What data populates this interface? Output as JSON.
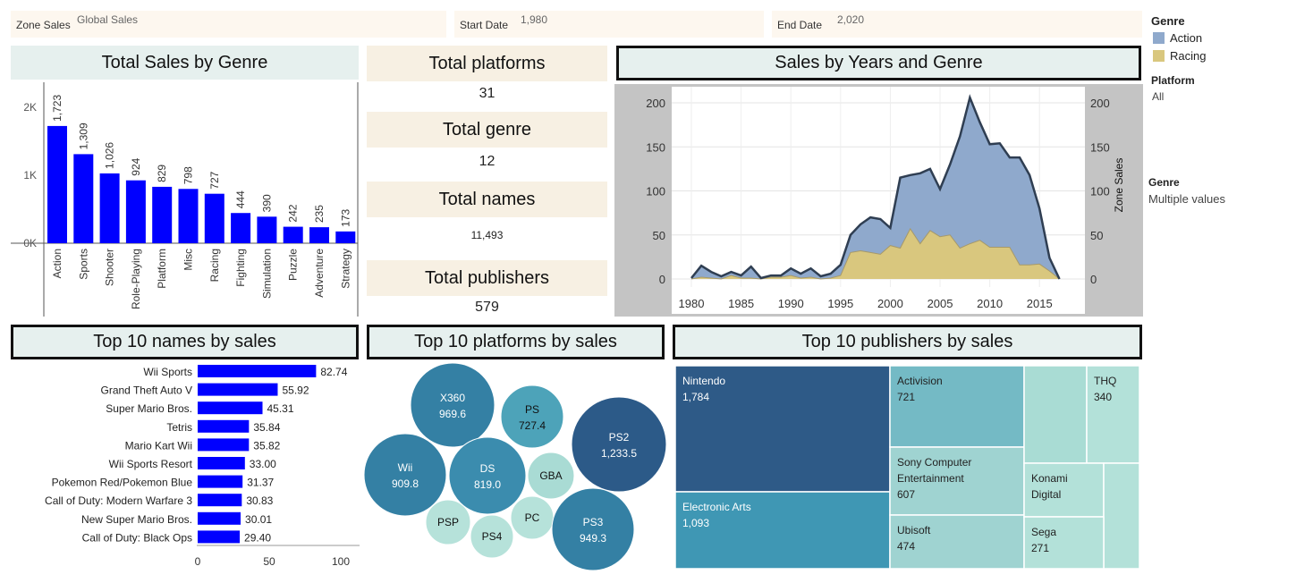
{
  "filters": {
    "zone_label": "Zone Sales",
    "zone_value": "Global Sales",
    "start_label": "Start Date",
    "start_value": "1,980",
    "end_label": "End Date",
    "end_value": "2,020"
  },
  "legend": {
    "genre_title": "Genre",
    "items": [
      {
        "label": "Action",
        "color": "#8fa9cc"
      },
      {
        "label": "Racing",
        "color": "#d9c77e"
      }
    ],
    "platform_title": "Platform",
    "platform_value": "All",
    "genre2_title": "Genre",
    "genre2_value": "Multiple values"
  },
  "kpis": {
    "platforms_title": "Total platforms",
    "platforms_value": "31",
    "genre_title": "Total genre",
    "genre_value": "12",
    "names_title": "Total names",
    "names_value": "11,493",
    "publishers_title": "Total publishers",
    "publishers_value": "579"
  },
  "chart_data": [
    {
      "type": "bar",
      "title": "Total Sales by Genre",
      "categories": [
        "Action",
        "Sports",
        "Shooter",
        "Role-Playing",
        "Platform",
        "Misc",
        "Racing",
        "Fighting",
        "Simulation",
        "Puzzle",
        "Adventure",
        "Strategy"
      ],
      "values": [
        1723,
        1309,
        1026,
        924,
        829,
        798,
        727,
        444,
        390,
        242,
        235,
        173
      ],
      "labels": [
        "1,723",
        "1,309",
        "1,026",
        "924",
        "829",
        "798",
        "727",
        "444",
        "390",
        "242",
        "235",
        "173"
      ],
      "yticks": [
        "0K",
        "1K",
        "2K"
      ],
      "ylim": [
        0,
        2300
      ],
      "color": "#0000ff"
    },
    {
      "type": "area",
      "title": "Sales by Years and Genre",
      "y2label": "Zone Sales",
      "x": [
        1980,
        1981,
        1982,
        1983,
        1984,
        1985,
        1986,
        1987,
        1988,
        1989,
        1990,
        1991,
        1992,
        1993,
        1994,
        1995,
        1996,
        1997,
        1998,
        1999,
        2000,
        2001,
        2002,
        2003,
        2004,
        2005,
        2006,
        2007,
        2008,
        2009,
        2010,
        2011,
        2012,
        2013,
        2014,
        2015,
        2016,
        2017
      ],
      "xticks": [
        1980,
        1985,
        1990,
        1995,
        2000,
        2005,
        2010,
        2015
      ],
      "yticks": [
        0,
        50,
        100,
        150,
        200
      ],
      "ylim": [
        0,
        220
      ],
      "series": [
        {
          "name": "Action",
          "color": "#8fa9cc",
          "values": [
            1,
            15,
            8,
            3,
            8,
            4,
            14,
            1,
            4,
            4,
            12,
            6,
            12,
            3,
            6,
            16,
            50,
            62,
            70,
            68,
            58,
            115,
            118,
            120,
            125,
            102,
            130,
            162,
            206,
            178,
            153,
            154,
            138,
            138,
            118,
            80,
            24,
            0
          ]
        },
        {
          "name": "Racing",
          "color": "#d9c77e",
          "values": [
            0,
            2,
            1,
            0,
            4,
            1,
            1,
            0,
            2,
            2,
            4,
            1,
            2,
            0,
            1,
            4,
            30,
            32,
            30,
            28,
            38,
            35,
            57,
            40,
            55,
            48,
            50,
            35,
            40,
            44,
            36,
            36,
            36,
            16,
            16,
            17,
            9,
            0
          ]
        }
      ]
    },
    {
      "type": "bar",
      "title": "Top 10 names by sales",
      "categories": [
        "Wii Sports",
        "Grand Theft Auto V",
        "Super Mario Bros.",
        "Tetris",
        "Mario Kart Wii",
        "Wii Sports Resort",
        "Pokemon Red/Pokemon Blue",
        "Call of Duty: Modern Warfare 3",
        "New Super Mario Bros.",
        "Call of Duty: Black Ops"
      ],
      "values": [
        82.74,
        55.92,
        45.31,
        35.84,
        35.82,
        33.0,
        31.37,
        30.83,
        30.01,
        29.4
      ],
      "labels": [
        "82.74",
        "55.92",
        "45.31",
        "35.84",
        "35.82",
        "33.00",
        "31.37",
        "30.83",
        "30.01",
        "29.40"
      ],
      "xticks": [
        "0",
        "50",
        "100"
      ],
      "xlim": [
        0,
        100
      ],
      "color": "#0000ff"
    },
    {
      "type": "bubble",
      "title": "Top 10 platforms by sales",
      "items": [
        {
          "name": "X360",
          "label": "969.6",
          "value": 969.6,
          "color": "#3480a4"
        },
        {
          "name": "PS",
          "label": "727.4",
          "value": 727.4,
          "color": "#4da3b9"
        },
        {
          "name": "PS2",
          "label": "1,233.5",
          "value": 1233.5,
          "color": "#2c5a88"
        },
        {
          "name": "Wii",
          "label": "909.8",
          "value": 909.8,
          "color": "#3480a4"
        },
        {
          "name": "DS",
          "label": "819.0",
          "value": 819.0,
          "color": "#3b8cae"
        },
        {
          "name": "GBA",
          "label": "",
          "value": 313,
          "color": "#a9dbd4"
        },
        {
          "name": "PSP",
          "label": "",
          "value": 294,
          "color": "#b6e2da"
        },
        {
          "name": "PC",
          "label": "",
          "value": 258,
          "color": "#b6e2da"
        },
        {
          "name": "PS4",
          "label": "",
          "value": 278,
          "color": "#b6e2da"
        },
        {
          "name": "PS3",
          "label": "949.3",
          "value": 949.3,
          "color": "#3480a4"
        }
      ]
    },
    {
      "type": "treemap",
      "title": "Top 10 publishers by sales",
      "items": [
        {
          "name": "Nintendo",
          "label": "1,784",
          "value": 1784,
          "color": "#2e5a87"
        },
        {
          "name": "Electronic Arts",
          "label": "1,093",
          "value": 1093,
          "color": "#3f97b4"
        },
        {
          "name": "Activision",
          "label": "721",
          "value": 721,
          "color": "#74bac5"
        },
        {
          "name": "Sony Computer Entertainment",
          "label": "607",
          "value": 607,
          "color": "#9fd3d1"
        },
        {
          "name": "Ubisoft",
          "label": "474",
          "value": 474,
          "color": "#9fd3d1"
        },
        {
          "name": "",
          "label": "",
          "value": 500,
          "color": "#a9dcd4"
        },
        {
          "name": "THQ",
          "label": "340",
          "value": 340,
          "color": "#b3e1d9"
        },
        {
          "name": "Konami Digital",
          "label": "",
          "value": 280,
          "color": "#b3e1d9"
        },
        {
          "name": "",
          "label": "",
          "value": 150,
          "color": "#b3e1d9"
        },
        {
          "name": "Sega",
          "label": "271",
          "value": 271,
          "color": "#b3e1d9"
        }
      ]
    }
  ]
}
